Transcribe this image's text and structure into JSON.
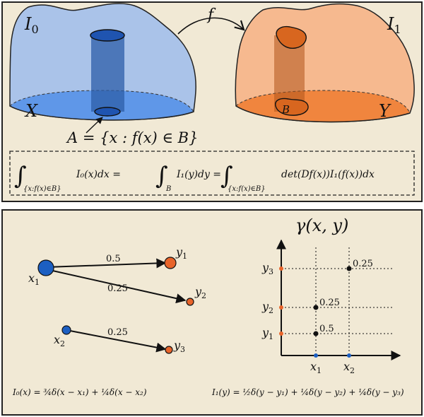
{
  "top_panel": {
    "left_label": "I",
    "left_label_sub": "0",
    "right_label": "I",
    "right_label_sub": "1",
    "map_label": "f",
    "domain_label": "X",
    "target_label": "Y",
    "set_label": "B",
    "preimage_label": "A = {x : f(x) ∈ B}",
    "equation": {
      "part1_int_sub": "{x:f(x)∈B}",
      "part1_body": "I₀(x)dx =",
      "part2_int_sub": "B",
      "part2_body": "I₁(y)dy =",
      "part3_int_sub": "{x:f(x)∈B}",
      "part3_body": "det(Df(x))I₁(f(x))dx"
    }
  },
  "bottom_panel": {
    "left_graph": {
      "nodes": [
        {
          "id": "x1",
          "label": "x",
          "sub": "1"
        },
        {
          "id": "x2",
          "label": "x",
          "sub": "2"
        },
        {
          "id": "y1",
          "label": "y",
          "sub": "1"
        },
        {
          "id": "y2",
          "label": "y",
          "sub": "2"
        },
        {
          "id": "y3",
          "label": "y",
          "sub": "3"
        }
      ],
      "edges": [
        {
          "from": "x1",
          "to": "y1",
          "weight": "0.5"
        },
        {
          "from": "x1",
          "to": "y2",
          "weight": "0.25"
        },
        {
          "from": "x2",
          "to": "y3",
          "weight": "0.25"
        }
      ]
    },
    "coupling_plot": {
      "title": "γ(x, y)",
      "x_ticks": [
        {
          "label": "x",
          "sub": "1"
        },
        {
          "label": "x",
          "sub": "2"
        }
      ],
      "y_ticks": [
        {
          "label": "y",
          "sub": "1"
        },
        {
          "label": "y",
          "sub": "2"
        },
        {
          "label": "y",
          "sub": "3"
        }
      ],
      "points": [
        {
          "x_index": 0,
          "y_index": 0,
          "label": "0.5"
        },
        {
          "x_index": 0,
          "y_index": 1,
          "label": "0.25"
        },
        {
          "x_index": 1,
          "y_index": 2,
          "label": "0.25"
        }
      ]
    },
    "formula_left": "I₀(x) = ¾δ(x − x₁) + ¼δ(x − x₂)",
    "formula_right": "I₁(y) = ½δ(y − y₁) + ¼δ(y − y₂) + ¼δ(y − y₃)"
  },
  "colors": {
    "panel_bg": "#f1e9d5",
    "blue_top": "#aac3e9",
    "blue_bottom": "#5f97e8",
    "blue_node": "#1c5fc2",
    "orange_top": "#f6b98f",
    "orange_bottom": "#f0853e",
    "orange_node": "#e8642a",
    "dark": "#111111"
  }
}
